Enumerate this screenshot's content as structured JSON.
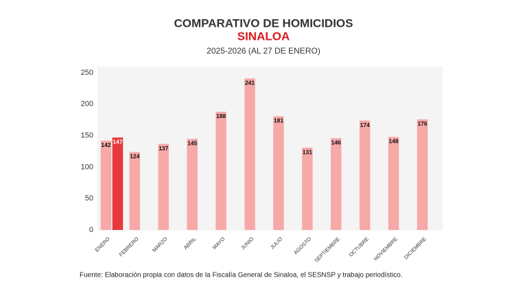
{
  "chart_data": {
    "type": "bar",
    "title": "COMPARATIVO DE HOMICIDIOS",
    "subtitle": "SINALOA",
    "period": "2025-2026 (AL 27 DE ENERO)",
    "source": "Fuente: Elaboración propia con datos de la Fiscalía General de Sinaloa, el SESNSP y trabajo periodístico.",
    "categories": [
      "ENERO",
      "FEBRERO",
      "MARZO",
      "ABRIL",
      "MAYO",
      "JUNIO",
      "JULIO",
      "AGOSTO",
      "SEPTIEMBRE",
      "OCTUBRE",
      "NOVIEMBRE",
      "DICIEMBRE"
    ],
    "series": [
      {
        "color": "#f7a9a8",
        "values": [
          142,
          124,
          137,
          145,
          188,
          241,
          181,
          131,
          146,
          174,
          148,
          176
        ]
      },
      {
        "color": "#e5393b",
        "values": [
          147,
          null,
          null,
          null,
          null,
          null,
          null,
          null,
          null,
          null,
          null,
          null
        ]
      }
    ],
    "ylim": [
      0,
      250
    ],
    "yticks": [
      0,
      50,
      100,
      150,
      200,
      250
    ],
    "grid": false
  }
}
